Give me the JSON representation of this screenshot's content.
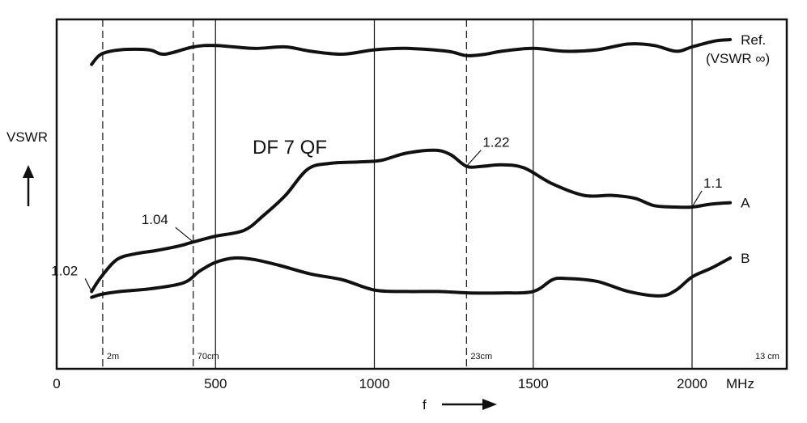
{
  "chart_data": {
    "type": "line",
    "title": "DF 7 QF",
    "xlabel": "f",
    "xunit": "MHz",
    "ylabel": "VSWR",
    "xlim": [
      0,
      2300
    ],
    "x_ticks": [
      0,
      500,
      1000,
      1500,
      2000
    ],
    "x_tick_labels": [
      "0",
      "500",
      "1000",
      "1500",
      "2000"
    ],
    "grid": "vertical",
    "band_markers": [
      {
        "x": 145,
        "label": "2m",
        "style": "dashed"
      },
      {
        "x": 430,
        "label": "70cm",
        "style": "dashed"
      },
      {
        "x": 1290,
        "label": "23cm",
        "style": "dashed"
      }
    ],
    "corner_band_label": "13 cm",
    "series": [
      {
        "name": "Ref.",
        "name_line2": "(VSWR ∞)",
        "x": [
          110,
          140,
          200,
          290,
          340,
          430,
          500,
          620,
          720,
          800,
          900,
          1000,
          1100,
          1230,
          1290,
          1350,
          1400,
          1500,
          1600,
          1700,
          1800,
          1880,
          1950,
          2000,
          2070,
          2120
        ],
        "y": [
          0.89,
          0.925,
          0.94,
          0.94,
          0.925,
          0.95,
          0.955,
          0.945,
          0.95,
          0.935,
          0.925,
          0.94,
          0.945,
          0.935,
          0.92,
          0.925,
          0.935,
          0.945,
          0.935,
          0.94,
          0.96,
          0.955,
          0.935,
          0.95,
          0.97,
          0.975
        ]
      },
      {
        "name": "A",
        "x": [
          110,
          140,
          190,
          250,
          310,
          380,
          430,
          500,
          590,
          650,
          720,
          790,
          860,
          950,
          1020,
          1100,
          1190,
          1240,
          1290,
          1340,
          1400,
          1470,
          1560,
          1660,
          1750,
          1820,
          1880,
          1950,
          2000,
          2060,
          2120
        ],
        "y": [
          0.11,
          0.16,
          0.22,
          0.24,
          0.25,
          0.265,
          0.28,
          0.3,
          0.32,
          0.37,
          0.44,
          0.53,
          0.55,
          0.555,
          0.56,
          0.585,
          0.595,
          0.58,
          0.54,
          0.54,
          0.545,
          0.535,
          0.48,
          0.44,
          0.44,
          0.43,
          0.405,
          0.4,
          0.4,
          0.41,
          0.415
        ]
      },
      {
        "name": "B",
        "x": [
          110,
          140,
          200,
          300,
          400,
          450,
          500,
          560,
          620,
          700,
          800,
          900,
          1000,
          1100,
          1200,
          1300,
          1400,
          1500,
          1560,
          1600,
          1700,
          1800,
          1900,
          1950,
          2000,
          2060,
          2120
        ],
        "y": [
          0.09,
          0.1,
          0.11,
          0.12,
          0.14,
          0.18,
          0.21,
          0.225,
          0.22,
          0.2,
          0.17,
          0.15,
          0.115,
          0.11,
          0.11,
          0.105,
          0.105,
          0.11,
          0.15,
          0.155,
          0.145,
          0.11,
          0.095,
          0.115,
          0.16,
          0.19,
          0.225
        ]
      }
    ],
    "annotations": [
      {
        "text": "1.02",
        "x": 110,
        "y": 0.11
      },
      {
        "text": "1.04",
        "x": 430,
        "y": 0.28
      },
      {
        "text": "1.22",
        "x": 1290,
        "y": 0.54
      },
      {
        "text": "1.1",
        "x": 2000,
        "y": 0.4
      }
    ]
  }
}
